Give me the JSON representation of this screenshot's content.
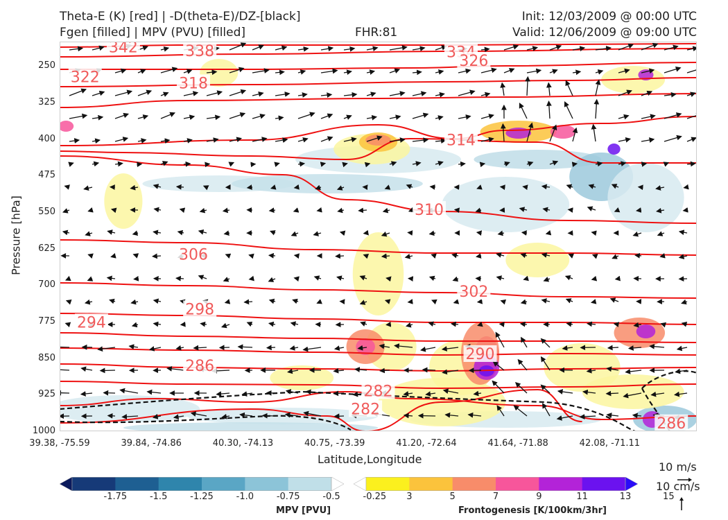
{
  "header": {
    "line1_left": "Theta-E (K) [red] | -D(theta-E)/DZ-[black]",
    "line2_left": "Fgen [filled] | MPV (PVU) [filled]",
    "fhr": "FHR:81",
    "init": "Init: 12/03/2009 @ 00:00 UTC",
    "valid": "Valid: 12/06/2009 @ 09:00 UTC"
  },
  "chart_data": {
    "type": "cross-section contour",
    "title": "Theta-E (K) [red] | -D(theta-E)/DZ-[black] / Fgen [filled] | MPV (PVU) [filled]",
    "xlabel": "Latitude,Longitude",
    "ylabel": "Pressure [hPa]",
    "x_ticks": [
      "39.38, -75.59",
      "39.84, -74.86",
      "40.30, -74.13",
      "40.75, -73.39",
      "41.20, -72.64",
      "41.64, -71.88",
      "42.08, -71.11"
    ],
    "y_ticks": [
      250,
      325,
      400,
      475,
      550,
      625,
      700,
      775,
      850,
      925,
      1000
    ],
    "ylim": [
      1000,
      200
    ],
    "y_inverted": true,
    "theta_e_labels": [
      {
        "value": 342,
        "x": 0.1,
        "p": 212
      },
      {
        "value": 338,
        "x": 0.22,
        "p": 220
      },
      {
        "value": 334,
        "x": 0.63,
        "p": 222
      },
      {
        "value": 326,
        "x": 0.65,
        "p": 240
      },
      {
        "value": 322,
        "x": 0.04,
        "p": 273
      },
      {
        "value": 318,
        "x": 0.21,
        "p": 286
      },
      {
        "value": 314,
        "x": 0.63,
        "p": 403
      },
      {
        "value": 310,
        "x": 0.58,
        "p": 546
      },
      {
        "value": 306,
        "x": 0.21,
        "p": 638
      },
      {
        "value": 302,
        "x": 0.65,
        "p": 714
      },
      {
        "value": 298,
        "x": 0.22,
        "p": 750
      },
      {
        "value": 294,
        "x": 0.05,
        "p": 777
      },
      {
        "value": 290,
        "x": 0.66,
        "p": 842
      },
      {
        "value": 286,
        "x": 0.22,
        "p": 866
      },
      {
        "value": 282,
        "x": 0.5,
        "p": 918
      },
      {
        "value": 282,
        "x": 0.48,
        "p": 955
      },
      {
        "value": 286,
        "x": 0.96,
        "p": 984
      }
    ],
    "mpv_colorbar": {
      "label": "MPV [PVU]",
      "ticks": [
        "-1.75",
        "-1.5",
        "-1.25",
        "-1.0",
        "-0.75",
        "-0.5",
        "-0.25"
      ],
      "colors": [
        "#0b1a5c",
        "#163a78",
        "#1e5f92",
        "#2f85ac",
        "#5aa6c5",
        "#8cc4d8",
        "#c0dfe8",
        "#ffffff"
      ]
    },
    "fgen_colorbar": {
      "label": "Frontogenesis [K/100km/3hr]",
      "ticks": [
        "3",
        "5",
        "7",
        "9",
        "11",
        "13",
        "15"
      ],
      "colors": [
        "#ffffff",
        "#fbf01e",
        "#fbc33c",
        "#f88c6a",
        "#f7569b",
        "#b323d8",
        "#6b12ef",
        "#2a0cf8"
      ]
    },
    "reference_vectors": {
      "horizontal": "10 m/s",
      "vertical": "10 cm/s"
    }
  }
}
